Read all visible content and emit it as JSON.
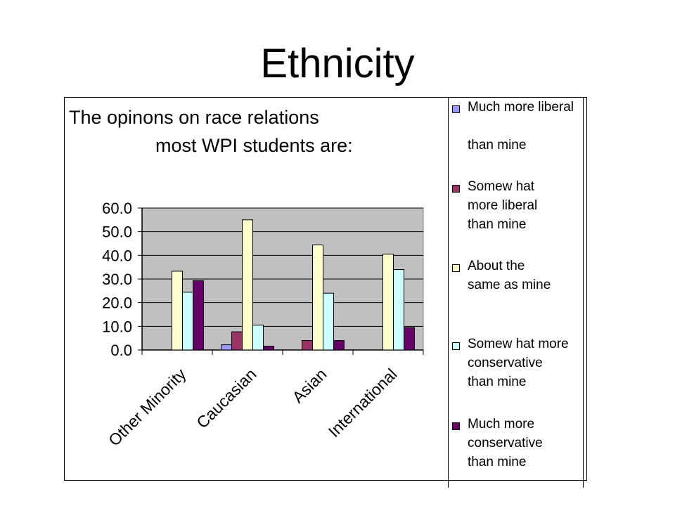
{
  "slide": {
    "title": "Ethnicity"
  },
  "chart_data": {
    "type": "bar",
    "title_lines": [
      "The opinons on race relations",
      "most WPI students are:"
    ],
    "categories": [
      "Other Minority",
      "Caucasian",
      "Asian",
      "International"
    ],
    "series": [
      {
        "name": "Much more liberal than mine",
        "legend_lines": "Much more liberal\n\nthan mine",
        "color": "#9999ff",
        "values": [
          0.0,
          2.2,
          0.0,
          0.0
        ]
      },
      {
        "name": "Somew hat more liberal than mine",
        "legend_lines": "Somew hat\nmore liberal\nthan mine",
        "color": "#993366",
        "values": [
          0.0,
          7.7,
          4.0,
          0.0
        ]
      },
      {
        "name": "About the same as mine",
        "legend_lines": "About the\nsame as mine",
        "color": "#ffffcc",
        "values": [
          33.3,
          55.0,
          44.4,
          40.5
        ]
      },
      {
        "name": "Somew hat more conservative than mine",
        "legend_lines": "Somew hat more\nconservative\nthan mine",
        "color": "#ccffff",
        "values": [
          24.4,
          10.5,
          24.0,
          34.0
        ]
      },
      {
        "name": "Much more conservative than mine",
        "legend_lines": "Much more\nconservative\nthan mine",
        "color": "#660066",
        "values": [
          29.3,
          1.6,
          4.0,
          9.5
        ]
      }
    ],
    "y_ticks": [
      "0.0",
      "10.0",
      "20.0",
      "30.0",
      "40.0",
      "50.0",
      "60.0"
    ],
    "ylim": [
      0,
      60
    ],
    "plot_background": "#c0c0c0",
    "grid": true,
    "legend": "right",
    "xlabel": "",
    "ylabel": ""
  }
}
